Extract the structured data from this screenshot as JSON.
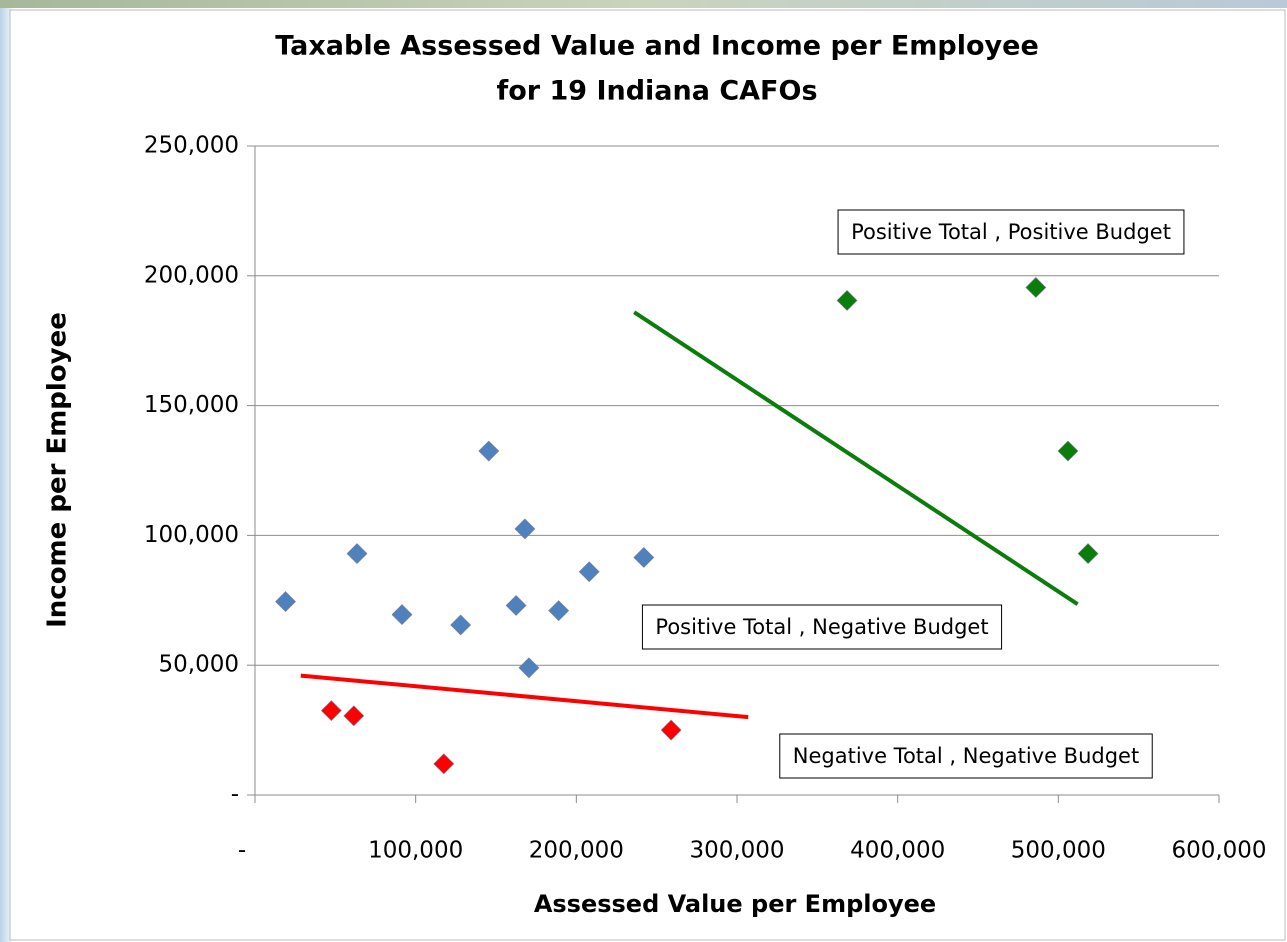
{
  "chart_data": {
    "type": "scatter",
    "title": [
      "Taxable Assessed Value and Income per Employee",
      "for 19 Indiana CAFOs"
    ],
    "x_label": "Assessed Value per Employee",
    "y_label": "Income per Employee",
    "xlim": [
      0,
      600000
    ],
    "ylim": [
      0,
      250000
    ],
    "xticks": [
      {
        "value": 0,
        "label": "-"
      },
      {
        "value": 100000,
        "label": "100,000"
      },
      {
        "value": 200000,
        "label": "200,000"
      },
      {
        "value": 300000,
        "label": "300,000"
      },
      {
        "value": 400000,
        "label": "400,000"
      },
      {
        "value": 500000,
        "label": "500,000"
      },
      {
        "value": 600000,
        "label": "600,000"
      }
    ],
    "yticks": [
      {
        "value": 0,
        "label": "-"
      },
      {
        "value": 50000,
        "label": "50,000"
      },
      {
        "value": 100000,
        "label": "100,000"
      },
      {
        "value": 150000,
        "label": "150,000"
      },
      {
        "value": 200000,
        "label": "200,000"
      },
      {
        "value": 250000,
        "label": "250,000"
      }
    ],
    "grid": true,
    "series": [
      {
        "color": "#4f81bd",
        "x": [
          19000,
          63500,
          91500,
          128000,
          145500,
          162500,
          168000,
          170500,
          189000,
          208000,
          242000
        ],
        "values": [
          74500,
          93000,
          69500,
          65500,
          132500,
          73000,
          102500,
          49000,
          71000,
          86000,
          91500
        ]
      },
      {
        "color": "#0a7d0a",
        "x": [
          368500,
          486000,
          506000,
          518500
        ],
        "values": [
          190500,
          195500,
          132500,
          93000
        ]
      },
      {
        "color": "#ff0000",
        "x": [
          47500,
          61500,
          117500,
          259000
        ],
        "values": [
          32500,
          30500,
          12000,
          25000
        ]
      }
    ],
    "trendlines": [
      {
        "color": "#0a7d0a",
        "x": [
          236000,
          512000
        ],
        "values": [
          186000,
          73500
        ]
      },
      {
        "color": "#ff0000",
        "x": [
          28500,
          307000
        ],
        "values": [
          46000,
          30000
        ]
      }
    ],
    "annotations": [
      {
        "text": "Positive Total , Positive Budget",
        "color": "#0a7d0a"
      },
      {
        "text": "Positive Total , Negative Budget",
        "color": "#2e86c8"
      },
      {
        "text": "Negative Total , Negative Budget",
        "color": "#ff0000"
      }
    ]
  }
}
